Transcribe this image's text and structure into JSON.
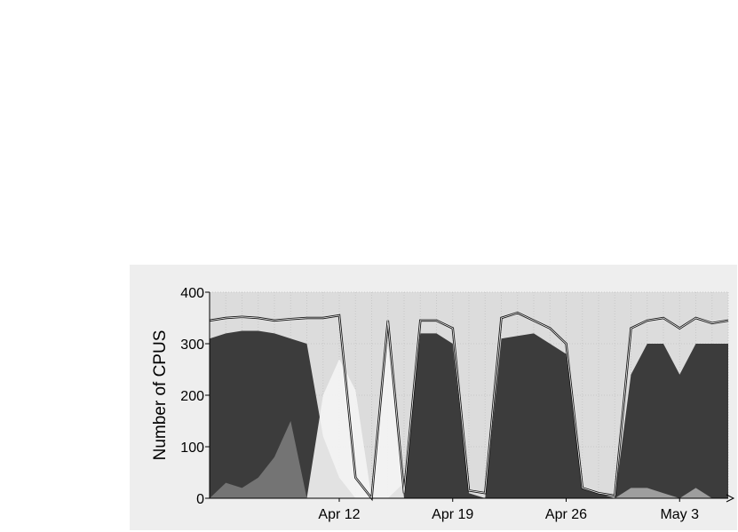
{
  "chart_data": {
    "type": "area",
    "title": "",
    "xlabel": "",
    "ylabel": "Number of CPUS",
    "ylim": [
      0,
      400
    ],
    "xlim": [
      "2009-04-04",
      "2009-05-06"
    ],
    "y_ticks": [
      0,
      100,
      200,
      300,
      400
    ],
    "x_ticks": [
      {
        "date": "2009-04-12",
        "label": "Apr 12"
      },
      {
        "date": "2009-04-19",
        "label": "Apr 19"
      },
      {
        "date": "2009-04-26",
        "label": "Apr 26"
      },
      {
        "date": "2009-05-03",
        "label": "May  3"
      }
    ],
    "grid": true,
    "legend": "none",
    "colors": {
      "panel": "#eeeeee",
      "plot": "#dcdcdc",
      "dark": "#3c3c3c",
      "mid": "#7a7a7a",
      "light": "#a9a9a9",
      "white": "#f4f4f4",
      "total_line": "#111111"
    },
    "x": [
      "2009-04-04",
      "2009-04-05",
      "2009-04-06",
      "2009-04-07",
      "2009-04-08",
      "2009-04-09",
      "2009-04-10",
      "2009-04-11",
      "2009-04-12",
      "2009-04-13",
      "2009-04-14",
      "2009-04-15",
      "2009-04-16",
      "2009-04-17",
      "2009-04-18",
      "2009-04-19",
      "2009-04-20",
      "2009-04-21",
      "2009-04-22",
      "2009-04-23",
      "2009-04-24",
      "2009-04-25",
      "2009-04-26",
      "2009-04-27",
      "2009-04-28",
      "2009-04-29",
      "2009-04-30",
      "2009-05-01",
      "2009-05-02",
      "2009-05-03",
      "2009-05-04",
      "2009-05-05",
      "2009-05-06"
    ],
    "series": [
      {
        "values": [
          310,
          320,
          325,
          325,
          320,
          310,
          300,
          120,
          40,
          0,
          0,
          0,
          30,
          320,
          320,
          300,
          10,
          0,
          310,
          315,
          320,
          300,
          280,
          20,
          10,
          0,
          240,
          300,
          300,
          240,
          300,
          300,
          300
        ]
      },
      {
        "values": [
          0,
          30,
          20,
          40,
          80,
          150,
          0,
          0,
          0,
          0,
          0,
          0,
          0,
          0,
          0,
          0,
          0,
          0,
          0,
          0,
          0,
          0,
          0,
          0,
          0,
          0,
          0,
          0,
          0,
          0,
          0,
          0,
          0
        ]
      },
      {
        "values": [
          0,
          0,
          0,
          0,
          0,
          0,
          0,
          200,
          270,
          210,
          0,
          300,
          0,
          0,
          0,
          0,
          0,
          0,
          0,
          0,
          0,
          0,
          0,
          0,
          0,
          0,
          0,
          0,
          0,
          0,
          0,
          0,
          0
        ]
      },
      {
        "values": [
          0,
          0,
          0,
          0,
          0,
          0,
          0,
          0,
          0,
          0,
          0,
          0,
          0,
          0,
          0,
          0,
          0,
          0,
          0,
          0,
          0,
          0,
          0,
          0,
          0,
          0,
          20,
          20,
          10,
          0,
          20,
          0,
          0
        ]
      },
      {
        "values": [
          345,
          350,
          352,
          350,
          345,
          348,
          350,
          350,
          355,
          40,
          0,
          345,
          10,
          345,
          345,
          330,
          15,
          10,
          350,
          360,
          345,
          330,
          300,
          20,
          10,
          5,
          330,
          345,
          350,
          330,
          350,
          340,
          345
        ]
      }
    ]
  }
}
